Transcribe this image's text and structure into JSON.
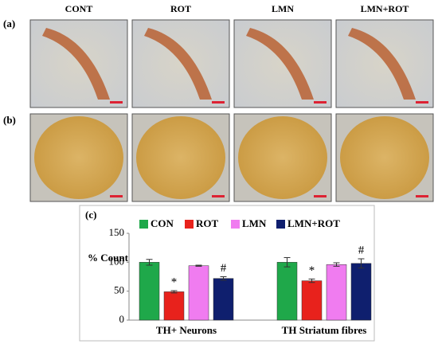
{
  "figure": {
    "column_labels": [
      "CONT",
      "ROT",
      "LMN",
      "LMN+ROT"
    ],
    "panel_labels": [
      "(a)",
      "(b)",
      "(c)"
    ]
  },
  "chart_data": {
    "type": "bar",
    "ylabel": "% Count",
    "categories": [
      "TH+ Neurons",
      "TH Striatum fibres"
    ],
    "series": [
      {
        "name": "CON",
        "color": "#1fa84a",
        "values": [
          100,
          100
        ],
        "errors": [
          5,
          8
        ]
      },
      {
        "name": "ROT",
        "color": "#e8221c",
        "values": [
          49,
          68
        ],
        "errors": [
          2,
          3
        ],
        "annotations": [
          "*",
          "*"
        ]
      },
      {
        "name": "LMN",
        "color": "#f07cf0",
        "values": [
          94,
          96
        ],
        "errors": [
          1,
          3
        ]
      },
      {
        "name": "LMN+ROT",
        "color": "#0f1f6e",
        "values": [
          72,
          98
        ],
        "errors": [
          3,
          8
        ],
        "annotations": [
          "#",
          "#"
        ]
      }
    ],
    "ylim": [
      0,
      150
    ],
    "yticks": [
      0,
      50,
      100,
      150
    ]
  }
}
